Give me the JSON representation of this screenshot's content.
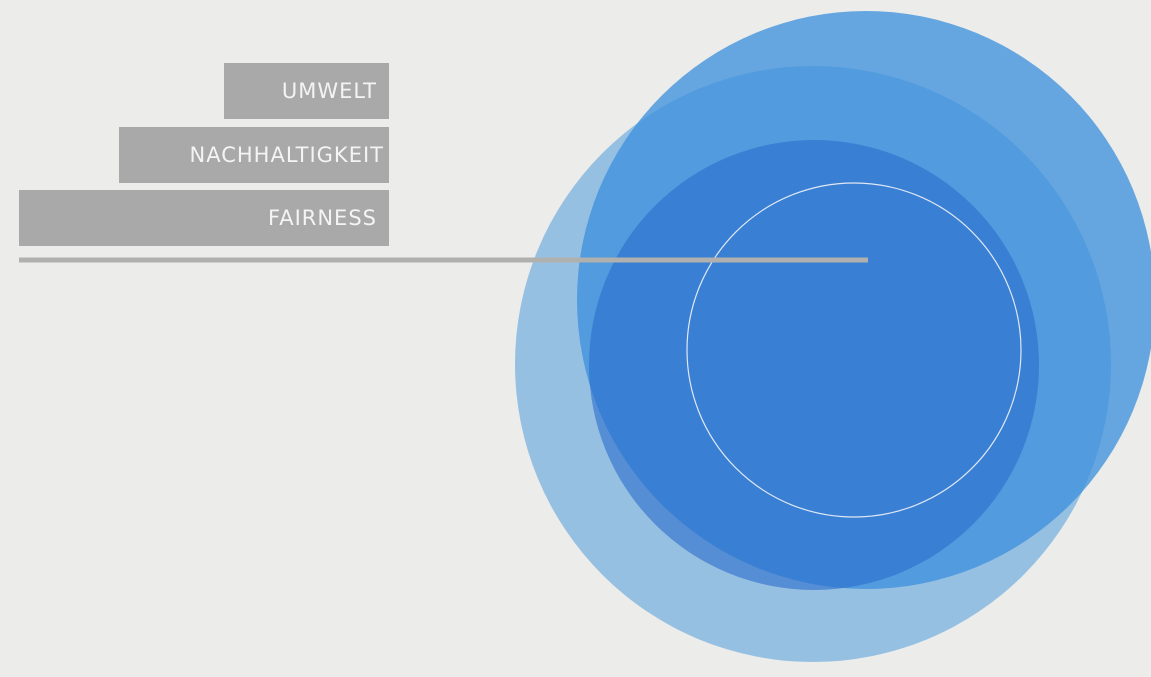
{
  "labels": [
    "UMWELT",
    "NACHHALTIGKEIT",
    "FAIRNESS"
  ]
}
